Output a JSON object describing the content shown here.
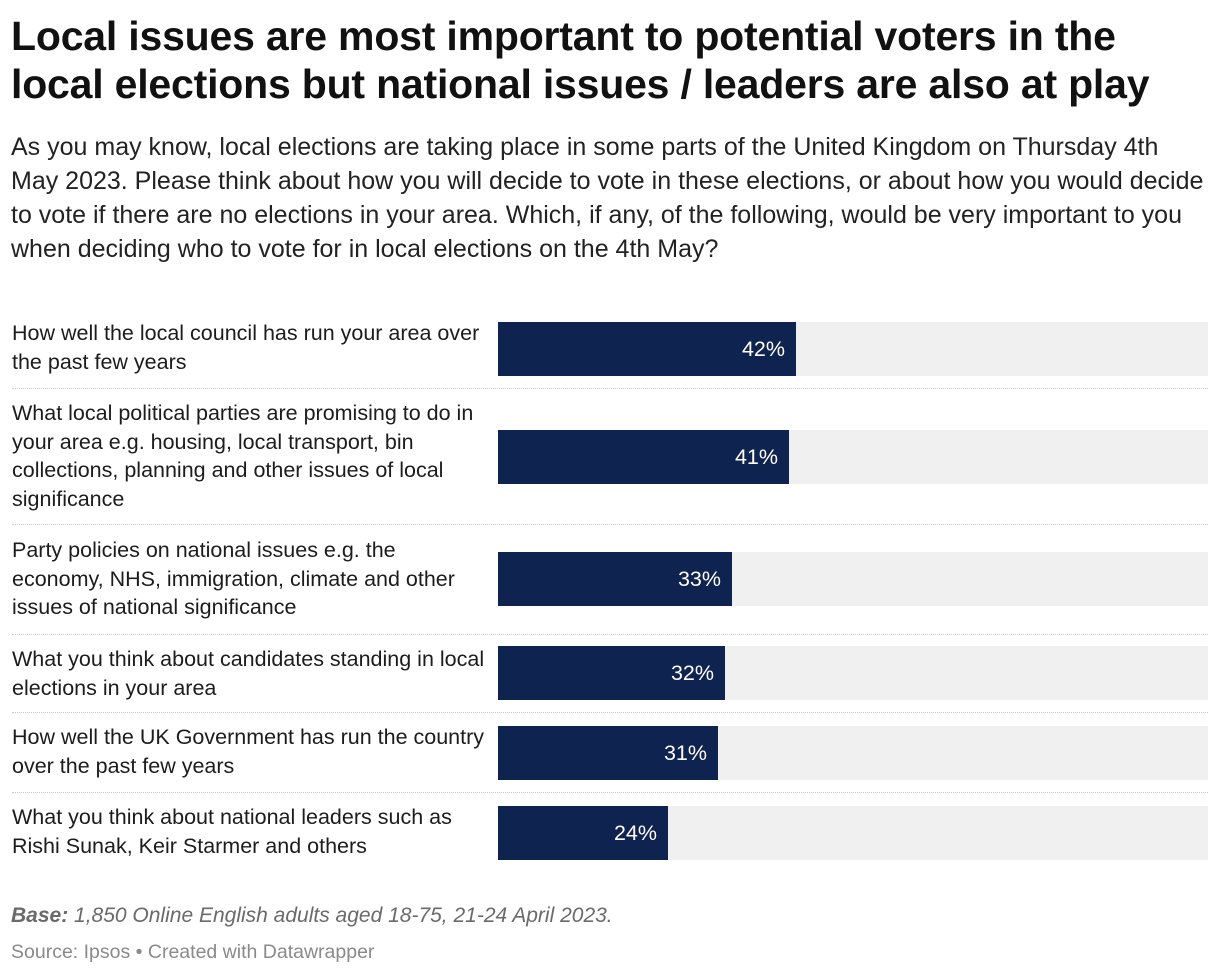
{
  "header": {
    "title": "Local issues are most important to potential voters in the local elections but national issues / leaders are also at play",
    "subtitle": "As you may know, local elections are taking place in some parts of the United Kingdom on Thursday 4th May 2023. Please think about how you will decide to vote in these elections, or about how you would decide to vote if there are no elections in your area. Which, if any, of the following, would be very important to you when deciding who to vote for in local elections on the 4th May?"
  },
  "chart_data": {
    "type": "bar",
    "orientation": "horizontal",
    "categories": [
      "How well the local council has run your area over the past few years",
      "What local political parties are promising to do in your area e.g. housing, local transport, bin collections, planning and other issues of local significance",
      "Party policies on national issues e.g. the economy, NHS, immigration, climate and other issues of national significance",
      "What you think about candidates standing in local elections in your area",
      "How well the UK Government has run the country over the past few years",
      "What you think about national leaders such as Rishi Sunak, Keir Starmer and others"
    ],
    "values": [
      42,
      41,
      33,
      32,
      31,
      24
    ],
    "value_labels": [
      "42%",
      "41%",
      "33%",
      "32%",
      "31%",
      "24%"
    ],
    "unit": "%",
    "xlim": [
      0,
      100
    ],
    "bar_color": "#0f2350",
    "track_color": "#f0f0f0",
    "grid": false,
    "legend": "none"
  },
  "notes": {
    "base_label": "Base:",
    "base_text": " 1,850 Online English adults aged 18-75, 21-24 April 2023."
  },
  "footer": {
    "source": "Source: Ipsos • Created with Datawrapper"
  }
}
